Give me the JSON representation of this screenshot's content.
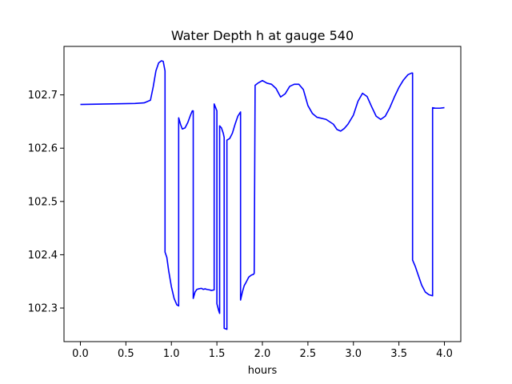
{
  "chart_data": {
    "type": "line",
    "title": "Water Depth h at gauge 540",
    "xlabel": "hours",
    "ylabel": "",
    "xlim": [
      -0.18,
      4.18
    ],
    "ylim": [
      102.237,
      102.791
    ],
    "xticks": [
      0.0,
      0.5,
      1.0,
      1.5,
      2.0,
      2.5,
      3.0,
      3.5,
      4.0
    ],
    "xtick_labels": [
      "0.0",
      "0.5",
      "1.0",
      "1.5",
      "2.0",
      "2.5",
      "3.0",
      "3.5",
      "4.0"
    ],
    "yticks": [
      102.3,
      102.4,
      102.5,
      102.6,
      102.7
    ],
    "ytick_labels": [
      "102.3",
      "102.4",
      "102.5",
      "102.6",
      "102.7"
    ],
    "grid": false,
    "series": [
      {
        "color": "#0000ff",
        "x": [
          0.0,
          0.3,
          0.6,
          0.7,
          0.77,
          0.8,
          0.83,
          0.86,
          0.89,
          0.91,
          0.93,
          0.93,
          0.95,
          0.97,
          1.0,
          1.03,
          1.06,
          1.08,
          1.08,
          1.1,
          1.12,
          1.15,
          1.18,
          1.21,
          1.23,
          1.24,
          1.24,
          1.26,
          1.28,
          1.3,
          1.33,
          1.35,
          1.37,
          1.39,
          1.42,
          1.44,
          1.47,
          1.47,
          1.5,
          1.5,
          1.52,
          1.53,
          1.53,
          1.55,
          1.57,
          1.58,
          1.58,
          1.61,
          1.61,
          1.64,
          1.67,
          1.7,
          1.73,
          1.76,
          1.76,
          1.78,
          1.8,
          1.82,
          1.85,
          1.88,
          1.9,
          1.91,
          1.92,
          1.95,
          2.0,
          2.05,
          2.1,
          2.15,
          2.2,
          2.25,
          2.3,
          2.35,
          2.4,
          2.45,
          2.5,
          2.55,
          2.6,
          2.7,
          2.78,
          2.82,
          2.86,
          2.9,
          2.94,
          3.0,
          3.05,
          3.1,
          3.15,
          3.2,
          3.25,
          3.3,
          3.35,
          3.4,
          3.45,
          3.5,
          3.55,
          3.6,
          3.64,
          3.65,
          3.65,
          3.68,
          3.71,
          3.75,
          3.79,
          3.83,
          3.87,
          3.87,
          3.9,
          3.95,
          4.0
        ],
        "y": [
          102.682,
          102.683,
          102.684,
          102.685,
          102.69,
          102.715,
          102.745,
          102.76,
          102.764,
          102.763,
          102.745,
          102.405,
          102.395,
          102.37,
          102.34,
          102.318,
          102.306,
          102.304,
          102.657,
          102.645,
          102.636,
          102.638,
          102.648,
          102.662,
          102.67,
          102.67,
          102.318,
          102.33,
          102.335,
          102.336,
          102.337,
          102.335,
          102.336,
          102.335,
          102.334,
          102.333,
          102.334,
          102.683,
          102.67,
          102.308,
          102.295,
          102.29,
          102.642,
          102.638,
          102.628,
          102.62,
          102.262,
          102.26,
          102.615,
          102.618,
          102.628,
          102.645,
          102.66,
          102.668,
          102.315,
          102.33,
          102.342,
          102.348,
          102.358,
          102.362,
          102.363,
          102.365,
          102.718,
          102.722,
          102.727,
          102.722,
          102.72,
          102.712,
          102.696,
          102.702,
          102.716,
          102.72,
          102.72,
          102.71,
          102.68,
          102.665,
          102.658,
          102.654,
          102.645,
          102.635,
          102.632,
          102.637,
          102.645,
          102.662,
          102.688,
          102.703,
          102.697,
          102.678,
          102.66,
          102.654,
          102.66,
          102.676,
          102.696,
          102.714,
          102.728,
          102.738,
          102.741,
          102.741,
          102.39,
          102.378,
          102.363,
          102.343,
          102.33,
          102.325,
          102.323,
          102.676,
          102.675,
          102.675,
          102.676
        ]
      }
    ]
  }
}
